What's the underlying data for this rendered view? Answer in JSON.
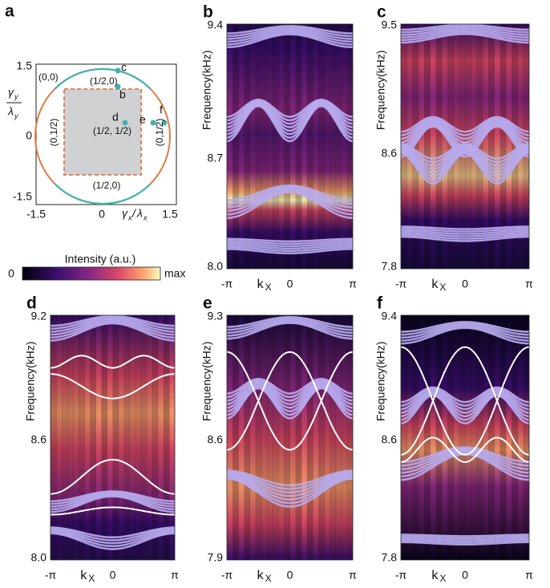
{
  "panel_a": {
    "label": "a",
    "xticks": [
      "-1.5",
      "0",
      "1.5"
    ],
    "yticks": [
      "1.5",
      "0",
      "-1.5"
    ],
    "xlabel": {
      "num": "γ",
      "num_sub": "x",
      "slash": "/",
      "den": "λ",
      "den_sub": "x"
    },
    "ylabel": {
      "num": "γ",
      "num_sub": "y",
      "den": "λ",
      "den_sub": "y"
    },
    "points": [
      "(0,0)",
      "c",
      "(1/2,0)",
      "b",
      "d",
      "(1/2, 1/2)",
      "e",
      "f",
      "(0,1/2)",
      "(0,1/2)",
      "(1/2,0)"
    ]
  },
  "colorbar": {
    "title": "Intensity (a.u.)",
    "min": "0",
    "max": "max"
  },
  "spectra": {
    "ylabel": "Frequency(kHz)",
    "xticks": [
      "-π",
      "0",
      "π"
    ],
    "xlabel": "k",
    "xlabel_sub": "X",
    "panels": [
      {
        "label": "b",
        "yticks": [
          "9.4",
          "8.7",
          "8.0"
        ]
      },
      {
        "label": "c",
        "yticks": [
          "9.5",
          "8.6",
          "7.8"
        ]
      },
      {
        "label": "d",
        "yticks": [
          "9.2",
          "8.6",
          "8.0"
        ]
      },
      {
        "label": "e",
        "yticks": [
          "9.3",
          "8.6",
          "7.9"
        ]
      },
      {
        "label": "f",
        "yticks": [
          "9.4",
          "8.6",
          "7.8"
        ]
      }
    ]
  }
}
